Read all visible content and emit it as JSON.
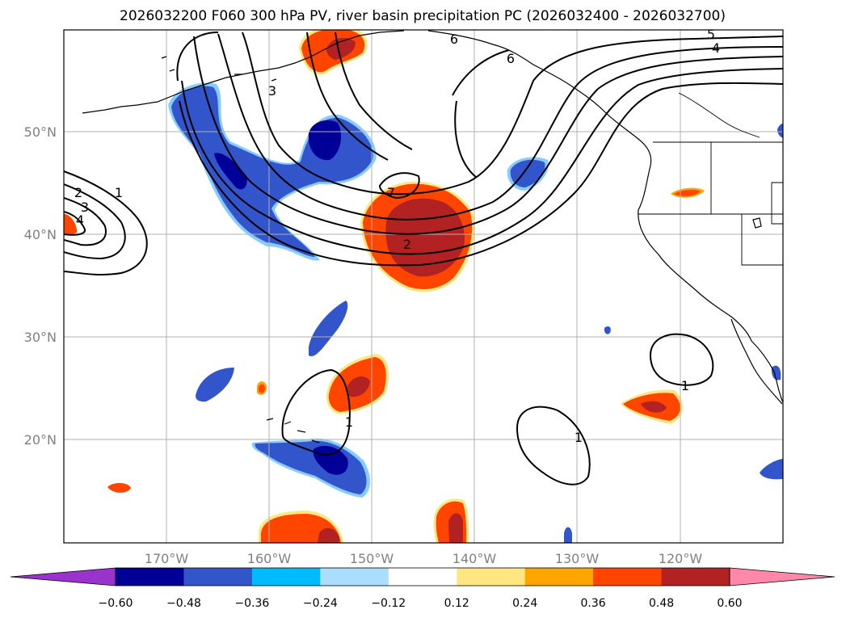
{
  "title": "2026032200 F060 300 hPa PV, river basin precipitation PC (2026032400 - 2026032700)",
  "axes": {
    "lon_labels": [
      "170°W",
      "160°W",
      "150°W",
      "140°W",
      "130°W",
      "120°W"
    ],
    "lat_labels": [
      "50°N",
      "40°N",
      "30°N",
      "20°N"
    ],
    "lon_range": [
      -180,
      -110
    ],
    "lat_range": [
      10,
      60
    ]
  },
  "colorbar": {
    "labels": [
      "−0.60",
      "−0.48",
      "−0.36",
      "−0.24",
      "−0.12",
      "0.12",
      "0.24",
      "0.36",
      "0.48",
      "0.60"
    ],
    "colors": [
      "#9933cc",
      "#000099",
      "#3355cc",
      "#00bbff",
      "#aaddff",
      "#ffffff",
      "#ffe680",
      "#ffa500",
      "#ff4500",
      "#b22222",
      "#ff88aa"
    ]
  },
  "contour_labels": {
    "pv_north_5": "5",
    "pv_north_4": "4",
    "pv_north_6a": "6",
    "pv_north_6b": "6",
    "pv_north_3": "3",
    "pv_north_7": "7",
    "pv_north_2": "2",
    "pv_west_1": "1",
    "pv_west_2": "2",
    "pv_west_3": "3",
    "pv_west_4": "4",
    "pv_hawaii_1": "1",
    "pv_central_1": "1",
    "pv_baja_1": "1"
  },
  "chart_data": {
    "type": "map",
    "title": "2026032200 F060 300 hPa PV, river basin precipitation PC (2026032400 - 2026032700)",
    "region": {
      "lon_min": -180,
      "lon_max": -110,
      "lat_min": 10,
      "lat_max": 60
    },
    "contour_field": "300 hPa PV",
    "contour_levels_labeled": [
      1,
      2,
      3,
      4,
      5,
      6,
      7
    ],
    "shaded_field": "river basin precipitation PC",
    "shading_levels": [
      -0.6,
      -0.48,
      -0.36,
      -0.24,
      -0.12,
      0.12,
      0.24,
      0.36,
      0.48,
      0.6
    ]
  }
}
